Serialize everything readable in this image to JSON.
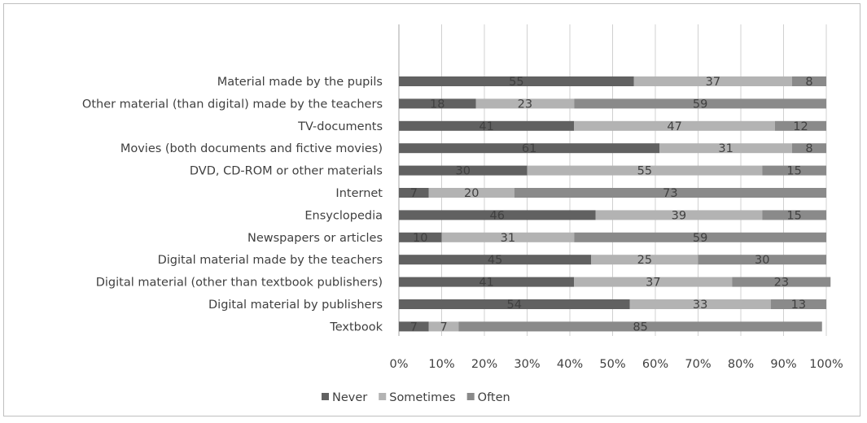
{
  "chart_data": {
    "type": "bar",
    "orientation": "horizontal",
    "stacked": "percent",
    "categories": [
      "Material made by the pupils",
      "Other material (than digital) made by the teachers",
      "TV-documents",
      "Movies (both documents and fictive movies)",
      "DVD, CD-ROM or other materials",
      "Internet",
      "Ensyclopedia",
      "Newspapers or articles",
      "Digital material made by the teachers",
      "Digital material (other than textbook publishers)",
      "Digital material by publishers",
      "Textbook"
    ],
    "series": [
      {
        "name": "Never",
        "color": "#616161",
        "values": [
          55,
          18,
          41,
          61,
          30,
          7,
          46,
          10,
          45,
          41,
          54,
          7
        ]
      },
      {
        "name": "Sometimes",
        "color": "#b3b3b3",
        "values": [
          37,
          23,
          47,
          31,
          55,
          20,
          39,
          31,
          25,
          37,
          33,
          7
        ]
      },
      {
        "name": "Often",
        "color": "#8a8a8a",
        "values": [
          8,
          59,
          12,
          8,
          15,
          73,
          15,
          59,
          30,
          23,
          13,
          85
        ]
      }
    ],
    "x_ticks": [
      "0%",
      "10%",
      "20%",
      "30%",
      "40%",
      "50%",
      "60%",
      "70%",
      "80%",
      "90%",
      "100%"
    ],
    "xlim": [
      0,
      100
    ],
    "grid": "vertical",
    "legend_position": "bottom",
    "title": "",
    "xlabel": "",
    "ylabel": ""
  }
}
